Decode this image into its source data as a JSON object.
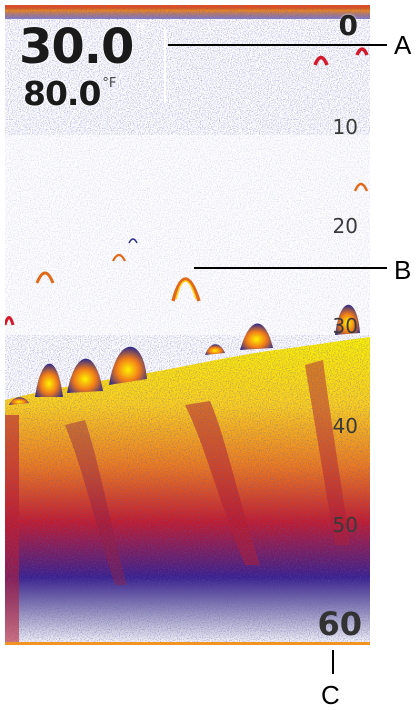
{
  "readouts": {
    "depth_value": "30.0",
    "depth_unit": "ft",
    "temperature_value": "80.0",
    "temperature_unit": "°F"
  },
  "depth_scale": {
    "labels": [
      "0",
      "10",
      "20",
      "30",
      "40",
      "50",
      "60"
    ],
    "range_ft": [
      0,
      60
    ]
  },
  "callouts": {
    "a": "A",
    "b": "B",
    "c": "C"
  },
  "colors": {
    "surface_band": "#f0901a",
    "bottom_return_strong": "#ffee00",
    "bottom_return_mid": "#e0341a",
    "bottom_return_weak": "#2a2a8c",
    "range_line": "#f29423"
  }
}
